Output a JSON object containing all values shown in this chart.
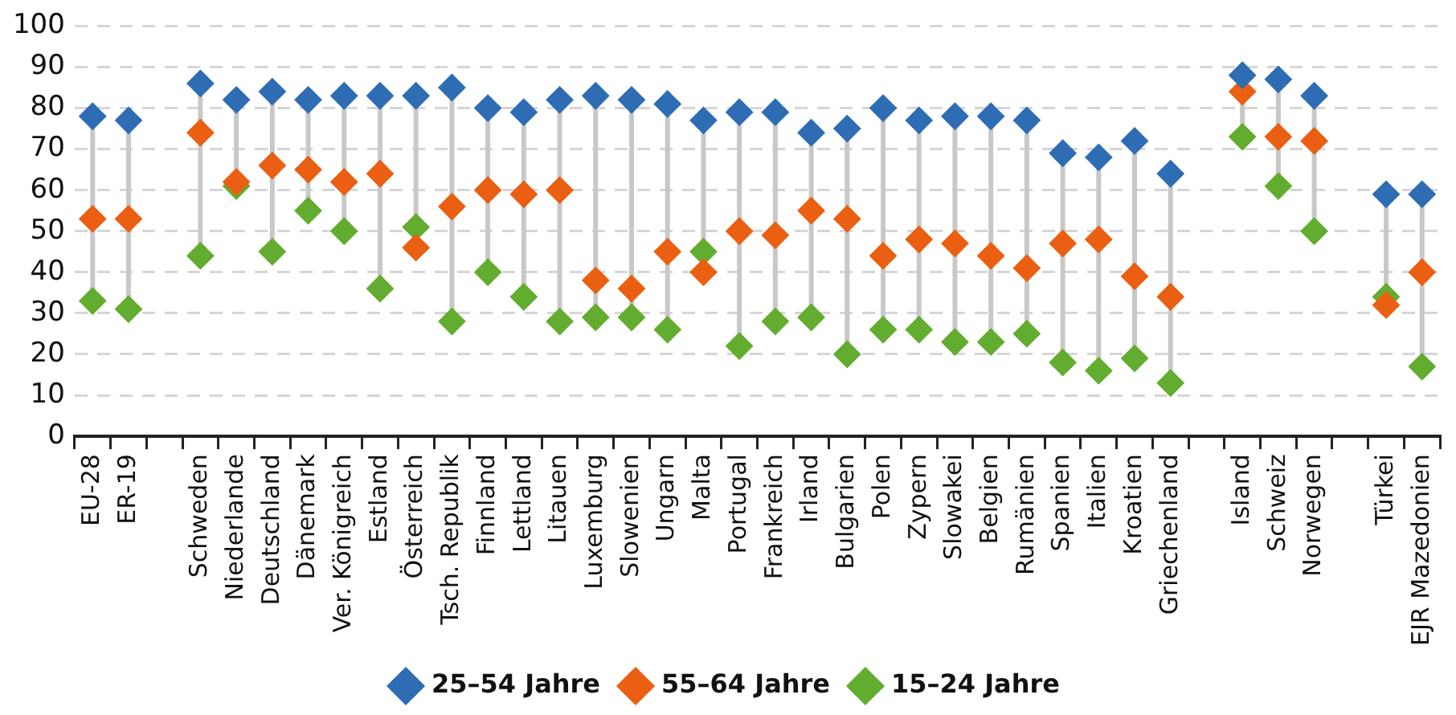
{
  "chart_data": {
    "type": "scatter",
    "marker": "diamond",
    "grid": "y",
    "legend": "bottom",
    "categories": [
      "EU-28",
      "ER-19",
      null,
      "Schweden",
      "Niederlande",
      "Deutschland",
      "Dänemark",
      "Ver. Königreich",
      "Estland",
      "Österreich",
      "Tsch. Republik",
      "Finnland",
      "Lettland",
      "Litauen",
      "Luxemburg",
      "Slowenien",
      "Ungarn",
      "Malta",
      "Portugal",
      "Frankreich",
      "Irland",
      "Bulgarien",
      "Polen",
      "Zypern",
      "Slowakei",
      "Belgien",
      "Rumänien",
      "Spanien",
      "Italien",
      "Kroatien",
      "Griechenland",
      null,
      "Island",
      "Schweiz",
      "Norwegen",
      null,
      "Türkei",
      "EJR Mazedonien"
    ],
    "ylim": [
      0,
      100
    ],
    "yticks": [
      0,
      10,
      20,
      30,
      40,
      50,
      60,
      70,
      80,
      90,
      100
    ],
    "series": [
      {
        "name": "25–54 Jahre",
        "color": "#2e6db4",
        "values": [
          78,
          77,
          null,
          86,
          82,
          84,
          82,
          83,
          83,
          83,
          85,
          80,
          79,
          82,
          83,
          82,
          81,
          77,
          79,
          79,
          74,
          75,
          80,
          77,
          78,
          78,
          77,
          69,
          68,
          72,
          64,
          null,
          88,
          87,
          83,
          null,
          59,
          59
        ]
      },
      {
        "name": "55–64 Jahre",
        "color": "#ea5f12",
        "values": [
          53,
          53,
          null,
          74,
          62,
          66,
          65,
          62,
          64,
          46,
          56,
          60,
          59,
          60,
          38,
          36,
          45,
          40,
          50,
          49,
          55,
          53,
          44,
          48,
          47,
          44,
          41,
          47,
          48,
          39,
          34,
          null,
          84,
          73,
          72,
          null,
          32,
          40
        ]
      },
      {
        "name": "15–24 Jahre",
        "color": "#62ad2f",
        "values": [
          33,
          31,
          null,
          44,
          61,
          45,
          55,
          50,
          36,
          51,
          28,
          40,
          34,
          28,
          29,
          29,
          26,
          45,
          22,
          28,
          29,
          20,
          26,
          26,
          23,
          23,
          25,
          18,
          16,
          19,
          13,
          null,
          73,
          61,
          50,
          null,
          34,
          17
        ]
      }
    ]
  }
}
